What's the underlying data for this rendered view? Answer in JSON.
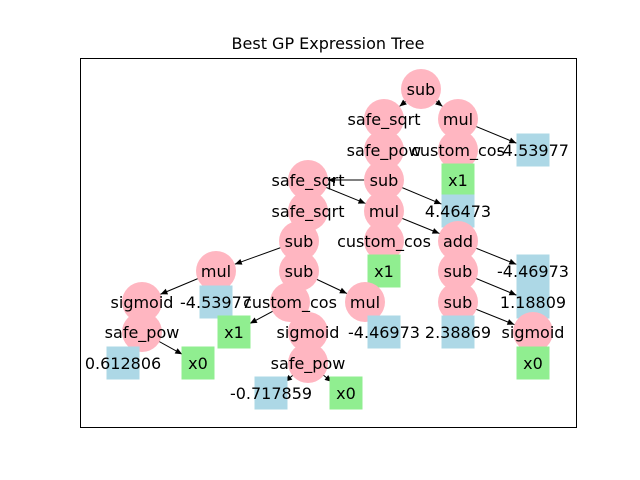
{
  "title": "Best GP Expression Tree",
  "colors": {
    "operator": "#ffb6c1",
    "constant": "#add8e6",
    "variable": "#90ee90",
    "edge": "#000000"
  },
  "nodes": [
    {
      "id": "n0",
      "label": "sub",
      "kind": "operator"
    },
    {
      "id": "n1",
      "label": "safe_sqrt",
      "kind": "operator"
    },
    {
      "id": "n2",
      "label": "mul",
      "kind": "operator"
    },
    {
      "id": "n3",
      "label": "safe_pow",
      "kind": "operator"
    },
    {
      "id": "n4",
      "label": "custom_cos",
      "kind": "operator"
    },
    {
      "id": "n5",
      "label": "-4.53977",
      "kind": "constant"
    },
    {
      "id": "n6",
      "label": "sub",
      "kind": "operator"
    },
    {
      "id": "n7",
      "label": "x1",
      "kind": "variable"
    },
    {
      "id": "n8",
      "label": "safe_sqrt",
      "kind": "operator"
    },
    {
      "id": "n9",
      "label": "4.46473",
      "kind": "constant"
    },
    {
      "id": "n10",
      "label": "safe_sqrt",
      "kind": "operator"
    },
    {
      "id": "n11",
      "label": "mul",
      "kind": "operator"
    },
    {
      "id": "n12",
      "label": "sub",
      "kind": "operator"
    },
    {
      "id": "n13",
      "label": "custom_cos",
      "kind": "operator"
    },
    {
      "id": "n14",
      "label": "add",
      "kind": "operator"
    },
    {
      "id": "n15",
      "label": "mul",
      "kind": "operator"
    },
    {
      "id": "n16",
      "label": "sub",
      "kind": "operator"
    },
    {
      "id": "n17",
      "label": "x1",
      "kind": "variable"
    },
    {
      "id": "n18",
      "label": "sub",
      "kind": "operator"
    },
    {
      "id": "n19",
      "label": "-4.46973",
      "kind": "constant"
    },
    {
      "id": "n20",
      "label": "sigmoid",
      "kind": "operator"
    },
    {
      "id": "n21",
      "label": "-4.53977",
      "kind": "constant"
    },
    {
      "id": "n22",
      "label": "custom_cos",
      "kind": "operator"
    },
    {
      "id": "n23",
      "label": "mul",
      "kind": "operator"
    },
    {
      "id": "n24",
      "label": "sub",
      "kind": "operator"
    },
    {
      "id": "n25",
      "label": "1.18809",
      "kind": "constant"
    },
    {
      "id": "n26",
      "label": "safe_pow",
      "kind": "operator"
    },
    {
      "id": "n27",
      "label": "x1",
      "kind": "variable"
    },
    {
      "id": "n28",
      "label": "sigmoid",
      "kind": "operator"
    },
    {
      "id": "n29",
      "label": "-4.46973",
      "kind": "constant"
    },
    {
      "id": "n30",
      "label": "2.38869",
      "kind": "constant"
    },
    {
      "id": "n31",
      "label": "sigmoid",
      "kind": "operator"
    },
    {
      "id": "n32",
      "label": "0.612806",
      "kind": "constant"
    },
    {
      "id": "n33",
      "label": "x0",
      "kind": "variable"
    },
    {
      "id": "n34",
      "label": "safe_pow",
      "kind": "operator"
    },
    {
      "id": "n35",
      "label": "x0",
      "kind": "variable"
    },
    {
      "id": "n36",
      "label": "-0.717859",
      "kind": "constant"
    },
    {
      "id": "n37",
      "label": "x0",
      "kind": "variable"
    }
  ],
  "edges": [
    [
      "n0",
      "n1"
    ],
    [
      "n0",
      "n2"
    ],
    [
      "n1",
      "n3"
    ],
    [
      "n2",
      "n4"
    ],
    [
      "n2",
      "n5"
    ],
    [
      "n3",
      "n6"
    ],
    [
      "n4",
      "n7"
    ],
    [
      "n6",
      "n8"
    ],
    [
      "n6",
      "n9"
    ],
    [
      "n8",
      "n10"
    ],
    [
      "n8",
      "n11"
    ],
    [
      "n10",
      "n12"
    ],
    [
      "n11",
      "n13"
    ],
    [
      "n11",
      "n14"
    ],
    [
      "n12",
      "n15"
    ],
    [
      "n12",
      "n16"
    ],
    [
      "n13",
      "n17"
    ],
    [
      "n14",
      "n18"
    ],
    [
      "n14",
      "n19"
    ],
    [
      "n15",
      "n20"
    ],
    [
      "n15",
      "n21"
    ],
    [
      "n16",
      "n22"
    ],
    [
      "n16",
      "n23"
    ],
    [
      "n18",
      "n24"
    ],
    [
      "n18",
      "n25"
    ],
    [
      "n20",
      "n26"
    ],
    [
      "n22",
      "n27"
    ],
    [
      "n22",
      "n28"
    ],
    [
      "n23",
      "n29"
    ],
    [
      "n24",
      "n30"
    ],
    [
      "n24",
      "n31"
    ],
    [
      "n26",
      "n32"
    ],
    [
      "n26",
      "n33"
    ],
    [
      "n28",
      "n34"
    ],
    [
      "n31",
      "n35"
    ],
    [
      "n34",
      "n36"
    ],
    [
      "n34",
      "n37"
    ]
  ]
}
